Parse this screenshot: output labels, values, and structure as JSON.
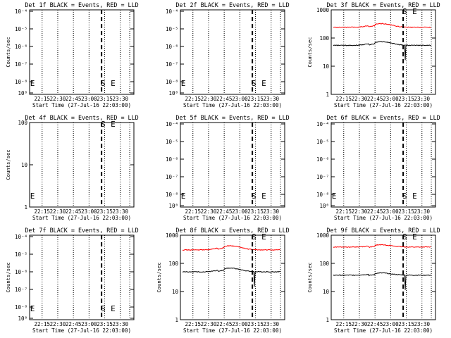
{
  "chart_data": [
    {
      "type": "line",
      "title": "Det 1f BLACK = Events, RED = LLD",
      "xlabel": "Start Time (27-Jul-16 22:03:00)",
      "ylabel": "Counts/sec",
      "yscale": "log",
      "ytick_labels": [
        "10⁻⁴",
        "10⁻⁵",
        "10⁻⁶",
        "10⁻⁷",
        "10⁻⁸",
        "10⁰"
      ],
      "xtick_labels": [
        "22:15",
        "22:30",
        "22:45",
        "23:00",
        "23:15",
        "23:30"
      ],
      "marks": [
        "S",
        "E"
      ],
      "series": []
    },
    {
      "type": "line",
      "title": "Det 2f BLACK = Events, RED = LLD",
      "xlabel": "Start Time (27-Jul-16 22:03:00)",
      "ylabel": "",
      "yscale": "log",
      "ytick_labels": [
        "10⁻⁴",
        "10⁻⁵",
        "10⁻⁶",
        "10⁻⁷",
        "10⁻⁸",
        "10⁰"
      ],
      "xtick_labels": [
        "22:15",
        "22:30",
        "22:45",
        "23:00",
        "23:15",
        "23:30"
      ],
      "marks": [
        "S",
        "E"
      ],
      "series": []
    },
    {
      "type": "line",
      "title": "Det 3f BLACK = Events, RED = LLD",
      "xlabel": "Start Time (27-Jul-16 22:03:00)",
      "ylabel": "Counts/sec",
      "yscale": "log",
      "ytick_labels": [
        "1000",
        "100",
        "10",
        "1"
      ],
      "xtick_labels": [
        "22:15",
        "22:30",
        "22:45",
        "23:00",
        "23:15",
        "23:30"
      ],
      "marks": [
        "S",
        "E"
      ],
      "series": [
        {
          "color": "#ff0000",
          "base": 240,
          "bump": 1.35
        },
        {
          "color": "#000000",
          "base": 55,
          "bump": 1.35
        }
      ]
    },
    {
      "type": "line",
      "title": "Det 4f BLACK = Events, RED = LLD",
      "xlabel": "Start Time (27-Jul-16 22:03:00)",
      "ylabel": "Counts/sec",
      "yscale": "log",
      "ytick_labels": [
        "100",
        "10",
        "1"
      ],
      "xtick_labels": [
        "22:15",
        "22:30",
        "22:45",
        "23:00",
        "23:15",
        "23:30"
      ],
      "marks": [
        "S",
        "E"
      ],
      "series": []
    },
    {
      "type": "line",
      "title": "Det 5f BLACK = Events, RED = LLD",
      "xlabel": "Start Time (27-Jul-16 22:03:00)",
      "ylabel": "",
      "yscale": "log",
      "ytick_labels": [
        "10⁻⁴",
        "10⁻⁵",
        "10⁻⁶",
        "10⁻⁷",
        "10⁻⁸",
        "10⁰"
      ],
      "xtick_labels": [
        "22:15",
        "22:30",
        "22:45",
        "23:00",
        "23:15",
        "23:30"
      ],
      "marks": [
        "S",
        "E"
      ],
      "series": []
    },
    {
      "type": "line",
      "title": "Det 6f BLACK = Events, RED = LLD",
      "xlabel": "Start Time (27-Jul-16 22:03:00)",
      "ylabel": "",
      "yscale": "log",
      "ytick_labels": [
        "10⁻⁴",
        "10⁻⁵",
        "10⁻⁶",
        "10⁻⁷",
        "10⁻⁸",
        "10⁰"
      ],
      "xtick_labels": [
        "22:15",
        "22:30",
        "22:45",
        "23:00",
        "23:15",
        "23:30"
      ],
      "marks": [
        "S",
        "E"
      ],
      "series": []
    },
    {
      "type": "line",
      "title": "Det 7f BLACK = Events, RED = LLD",
      "xlabel": "Start Time (27-Jul-16 22:03:00)",
      "ylabel": "Counts/sec",
      "yscale": "log",
      "ytick_labels": [
        "10⁻⁴",
        "10⁻⁵",
        "10⁻⁶",
        "10⁻⁷",
        "10⁻⁸",
        "10⁰"
      ],
      "xtick_labels": [
        "22:15",
        "22:30",
        "22:45",
        "23:00",
        "23:15",
        "23:30"
      ],
      "marks": [
        "S",
        "E"
      ],
      "series": []
    },
    {
      "type": "line",
      "title": "Det 8f BLACK = Events, RED = LLD",
      "xlabel": "Start Time (27-Jul-16 22:03:00)",
      "ylabel": "Counts/sec",
      "yscale": "log",
      "ytick_labels": [
        "1000",
        "100",
        "10",
        "1"
      ],
      "xtick_labels": [
        "22:15",
        "22:30",
        "22:45",
        "23:00",
        "23:15",
        "23:30"
      ],
      "marks": [
        "S",
        "E"
      ],
      "series": [
        {
          "color": "#ff0000",
          "base": 300,
          "bump": 1.4
        },
        {
          "color": "#000000",
          "base": 50,
          "bump": 1.35
        }
      ]
    },
    {
      "type": "line",
      "title": "Det 9f BLACK = Events, RED = LLD",
      "xlabel": "Start Time (27-Jul-16 22:03:00)",
      "ylabel": "Counts/sec",
      "yscale": "log",
      "ytick_labels": [
        "1000",
        "100",
        "10",
        "1"
      ],
      "xtick_labels": [
        "22:15",
        "22:30",
        "22:45",
        "23:00",
        "23:15",
        "23:30"
      ],
      "marks": [
        "S",
        "E"
      ],
      "series": [
        {
          "color": "#ff0000",
          "base": 380,
          "bump": 1.2
        },
        {
          "color": "#000000",
          "base": 38,
          "bump": 1.2
        }
      ]
    }
  ]
}
